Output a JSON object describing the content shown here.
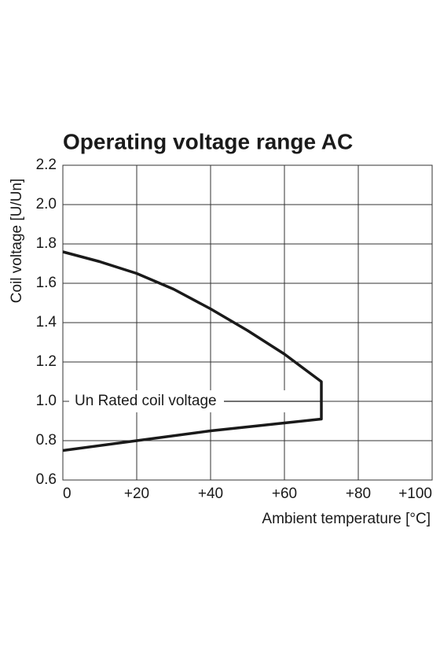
{
  "chart_data": {
    "type": "line",
    "title": "Operating voltage range AC",
    "x_label": "Ambient temperature [°C]",
    "y_label": "Coil voltage [U/Un]",
    "series": [
      {
        "color": "#1a1a1a",
        "x": [
          0,
          10,
          20,
          30,
          40,
          50,
          60,
          70,
          70,
          60,
          40,
          20,
          0
        ],
        "values": [
          1.76,
          1.71,
          1.65,
          1.57,
          1.47,
          1.36,
          1.24,
          1.1,
          0.91,
          0.89,
          0.85,
          0.8,
          0.75
        ]
      }
    ],
    "annotation": {
      "text": "Un Rated coil voltage",
      "y": 1
    },
    "xlim": [
      0,
      100
    ],
    "xticks": [
      0,
      {
        "value": 20,
        "label": "+20"
      },
      {
        "value": 40,
        "label": "+40"
      },
      {
        "value": 60,
        "label": "+60"
      },
      {
        "value": 80,
        "label": "+80"
      },
      {
        "value": 100,
        "label": "+100"
      }
    ],
    "ylim": [
      0.6,
      2.2
    ],
    "yticks": [
      0.6,
      0.8,
      {
        "value": 1,
        "label": "1.0"
      },
      1.2,
      1.4,
      1.6,
      1.8,
      {
        "value": 2,
        "label": "2.0"
      },
      2.2
    ],
    "grid": true
  }
}
